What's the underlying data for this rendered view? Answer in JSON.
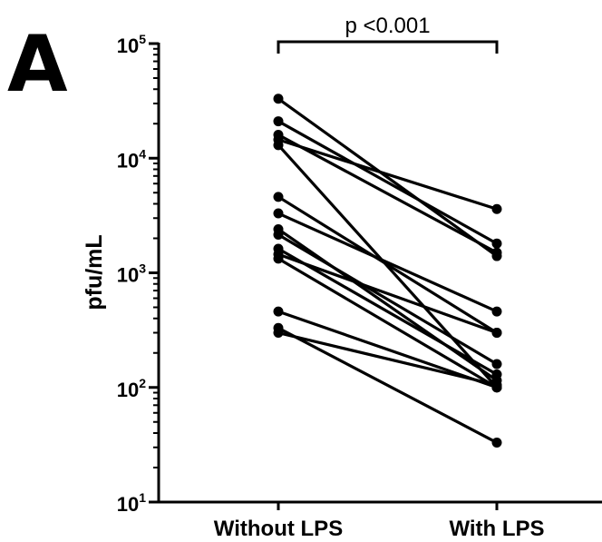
{
  "panel_label": "A",
  "chart_data": {
    "type": "paired-line",
    "yscale": "log",
    "ylim": [
      10,
      100000
    ],
    "ylabel": "pfu/mL",
    "xlabel": "",
    "categories": [
      "Without LPS",
      "With LPS"
    ],
    "y_ticks": [
      {
        "base": "10",
        "exp": "1",
        "value": 10
      },
      {
        "base": "10",
        "exp": "2",
        "value": 100
      },
      {
        "base": "10",
        "exp": "3",
        "value": 1000
      },
      {
        "base": "10",
        "exp": "4",
        "value": 10000
      },
      {
        "base": "10",
        "exp": "5",
        "value": 100000
      }
    ],
    "annotation": "p <0.001",
    "pairs": [
      [
        33000,
        1400
      ],
      [
        21000,
        1800
      ],
      [
        16000,
        1500
      ],
      [
        14500,
        3600
      ],
      [
        13000,
        100
      ],
      [
        4600,
        300
      ],
      [
        3300,
        460
      ],
      [
        2400,
        115
      ],
      [
        2150,
        160
      ],
      [
        1620,
        130
      ],
      [
        1450,
        300
      ],
      [
        1330,
        100
      ],
      [
        460,
        100
      ],
      [
        330,
        33
      ],
      [
        300,
        105
      ]
    ]
  }
}
